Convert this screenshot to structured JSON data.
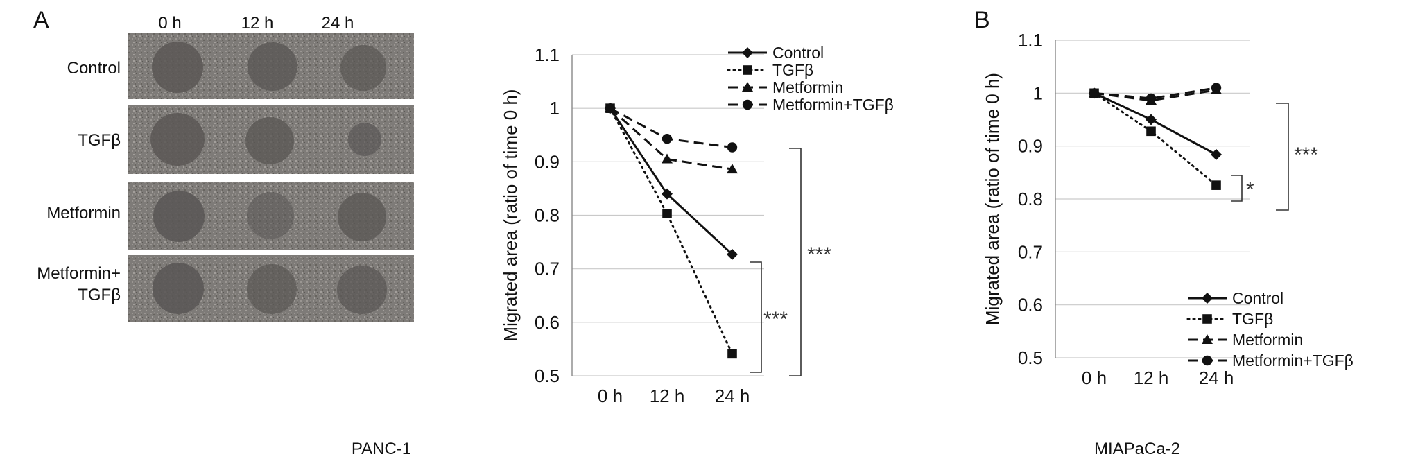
{
  "panel_a": {
    "letter": "A",
    "col_labels": [
      "0 h",
      "12 h",
      "24 h"
    ],
    "row_labels": [
      [
        "Control"
      ],
      [
        "TGFβ"
      ],
      [
        "Metformin"
      ],
      [
        "Metformin+",
        "TGFβ"
      ]
    ],
    "cell_line": "PANC-1",
    "significance": [
      "***",
      "***"
    ]
  },
  "panel_b": {
    "letter": "B",
    "cell_line": "MIAPaCa-2",
    "significance": [
      "***",
      "*"
    ]
  },
  "colors": {
    "line": "#111111",
    "grid": "#c9c9c9",
    "photo_bg": "#7e7b78",
    "wound": "#5a5755"
  },
  "chart_data": [
    {
      "type": "line",
      "x": [
        "0 h",
        "12 h",
        "24 h"
      ],
      "ylabel": "Migrated area (ratio of time 0 h)",
      "ylim": [
        0.5,
        1.1
      ],
      "yticks": [
        "0.5",
        "0.6",
        "0.7",
        "0.8",
        "0.9",
        "1",
        "1.1"
      ],
      "grid": true,
      "legend_position": "top-right",
      "series": [
        {
          "name": "Control",
          "values": [
            1.0,
            0.84,
            0.727
          ],
          "marker": "diamond",
          "dash": "solid"
        },
        {
          "name": "TGFβ",
          "values": [
            1.0,
            0.803,
            0.541
          ],
          "marker": "square",
          "dash": "dotted"
        },
        {
          "name": "Metformin",
          "values": [
            1.0,
            0.905,
            0.886
          ],
          "marker": "triangle",
          "dash": "dashed"
        },
        {
          "name": "Metformin+TGFβ",
          "values": [
            1.0,
            0.943,
            0.927
          ],
          "marker": "circle",
          "dash": "dashed"
        }
      ]
    },
    {
      "type": "line",
      "x": [
        "0 h",
        "12 h",
        "24 h"
      ],
      "ylabel": "Migrated area (ratio of time 0 h)",
      "ylim": [
        0.5,
        1.1
      ],
      "yticks": [
        "0.5",
        "0.6",
        "0.7",
        "0.8",
        "0.9",
        "1",
        "1.1"
      ],
      "grid": true,
      "legend_position": "bottom-right",
      "series": [
        {
          "name": "Control",
          "values": [
            1.0,
            0.95,
            0.884
          ],
          "marker": "diamond",
          "dash": "solid"
        },
        {
          "name": "TGFβ",
          "values": [
            1.0,
            0.928,
            0.826
          ],
          "marker": "square",
          "dash": "dotted"
        },
        {
          "name": "Metformin",
          "values": [
            1.0,
            0.986,
            1.006
          ],
          "marker": "triangle",
          "dash": "dashed"
        },
        {
          "name": "Metformin+TGFβ",
          "values": [
            1.0,
            0.99,
            1.01
          ],
          "marker": "circle",
          "dash": "dashed"
        }
      ]
    }
  ]
}
